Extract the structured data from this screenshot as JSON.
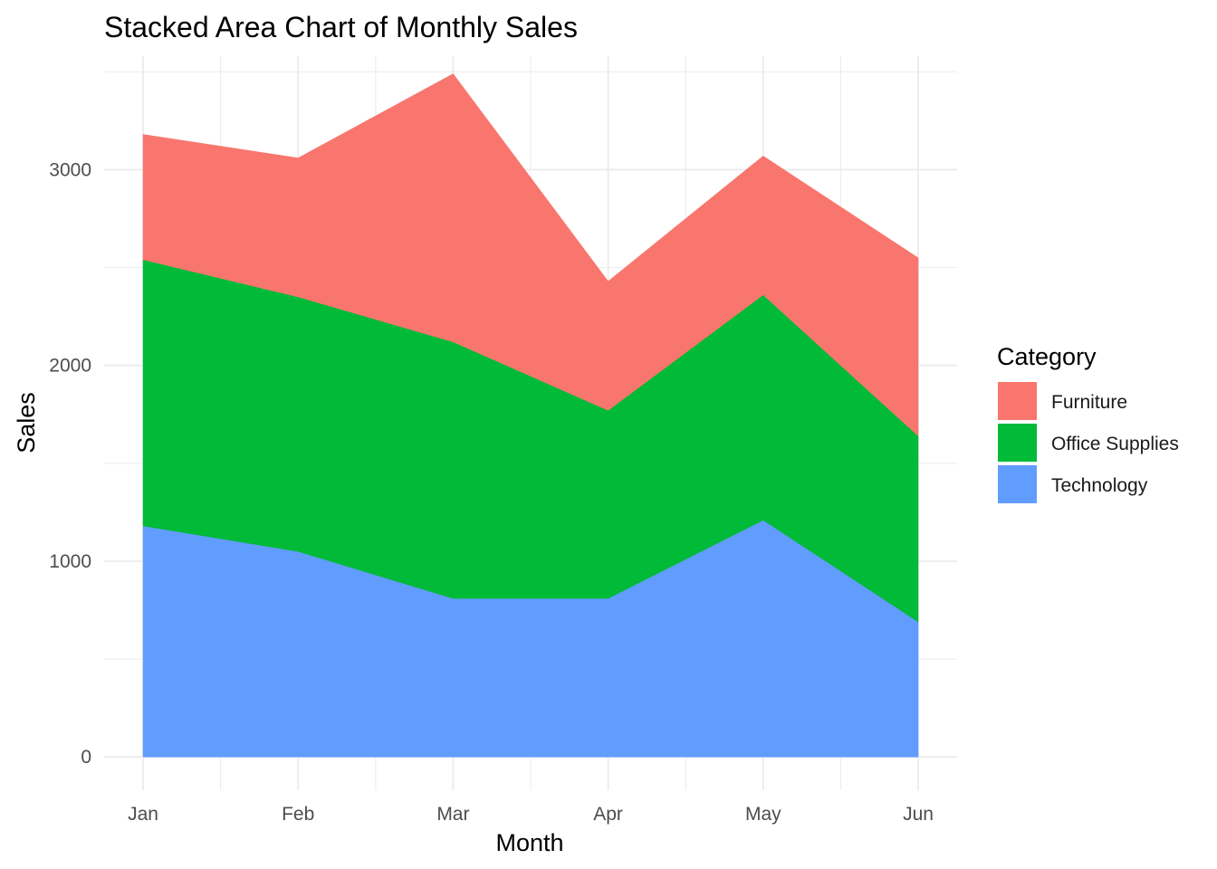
{
  "chart_data": {
    "type": "area",
    "stacked": true,
    "title": "Stacked Area Chart of Monthly Sales",
    "xlabel": "Month",
    "ylabel": "Sales",
    "categories": [
      "Jan",
      "Feb",
      "Mar",
      "Apr",
      "May",
      "Jun"
    ],
    "ylim": [
      -170,
      3580
    ],
    "yticks": [
      0,
      1000,
      2000,
      3000
    ],
    "ytick_labels": [
      "0",
      "1000",
      "2000",
      "3000"
    ],
    "grid": true,
    "legend": {
      "title": "Category",
      "position": "right",
      "entries": [
        "Furniture",
        "Office Supplies",
        "Technology"
      ]
    },
    "series": [
      {
        "name": "Technology",
        "color": "#619CFF",
        "values": [
          1180,
          1050,
          810,
          810,
          1210,
          690
        ]
      },
      {
        "name": "Office Supplies",
        "color": "#00BA38",
        "values": [
          1360,
          1300,
          1310,
          960,
          1150,
          950
        ]
      },
      {
        "name": "Furniture",
        "color": "#F8766D",
        "values": [
          640,
          710,
          1370,
          660,
          710,
          910
        ]
      }
    ]
  }
}
